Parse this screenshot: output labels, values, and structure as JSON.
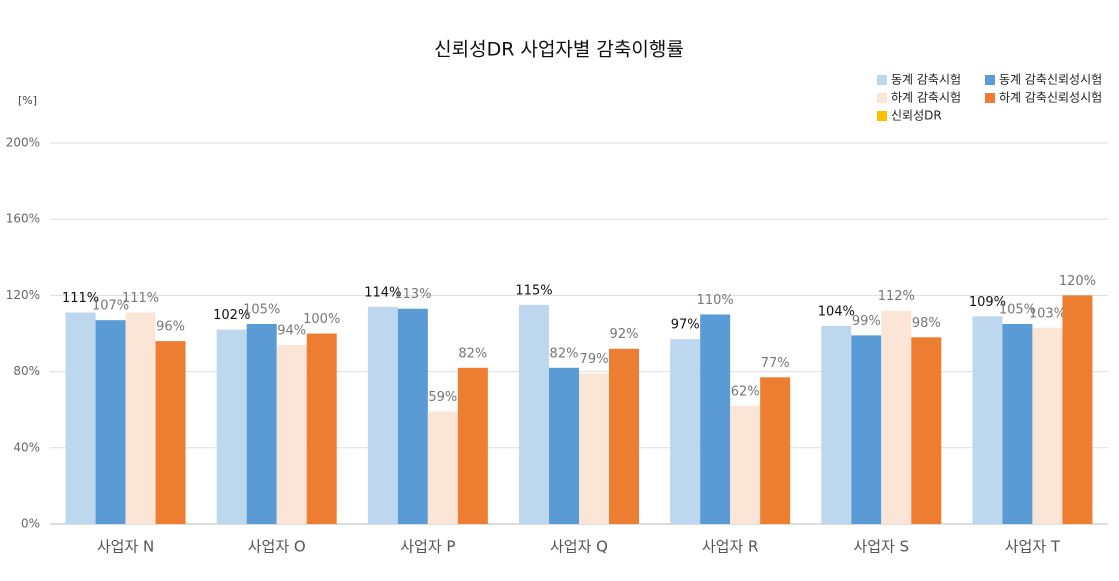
{
  "chart_data": {
    "type": "bar",
    "title": "신뢰성DR 사업자별 감축이행률",
    "y_unit": "[%]",
    "categories": [
      "사업자 N",
      "사업자 O",
      "사업자 P",
      "사업자 Q",
      "사업자 R",
      "사업자 S",
      "사업자 T"
    ],
    "series": [
      {
        "name": "동계 감축시험",
        "color": "#bdd7ee",
        "values": [
          111,
          102,
          114,
          115,
          97,
          104,
          109
        ],
        "value_labels": [
          "111%",
          "102%",
          "114%",
          "115%",
          "97%",
          "104%",
          "109%"
        ]
      },
      {
        "name": "동계 감축신뢰성시험",
        "color": "#5b9bd5",
        "values": [
          107,
          105,
          113,
          82,
          110,
          99,
          105
        ],
        "value_labels": [
          "107%",
          "105%",
          "113%",
          "82%",
          "110%",
          "99%",
          "105%"
        ]
      },
      {
        "name": "하계 감축시험",
        "color": "#fbe5d6",
        "values": [
          111,
          94,
          59,
          79,
          62,
          112,
          103
        ],
        "value_labels": [
          "111%",
          "94%",
          "59%",
          "79%",
          "62%",
          "112%",
          "103%"
        ]
      },
      {
        "name": "하계 감축신뢰성시험",
        "color": "#ed7d31",
        "values": [
          96,
          100,
          82,
          92,
          77,
          98,
          120
        ],
        "value_labels": [
          "96%",
          "100%",
          "82%",
          "92%",
          "77%",
          "98%",
          "120%"
        ]
      },
      {
        "name": "신뢰성DR",
        "color": "#ffc000",
        "values": [
          null,
          null,
          null,
          null,
          null,
          null,
          null
        ]
      }
    ],
    "ylim": [
      0,
      200
    ],
    "yticks": [
      {
        "value": 0,
        "label": "0%"
      },
      {
        "value": 40,
        "label": "40%"
      },
      {
        "value": 80,
        "label": "80%"
      },
      {
        "value": 120,
        "label": "120%"
      },
      {
        "value": 160,
        "label": "160%"
      },
      {
        "value": 200,
        "label": "200%"
      }
    ],
    "grid": true,
    "legend": "top-right"
  }
}
